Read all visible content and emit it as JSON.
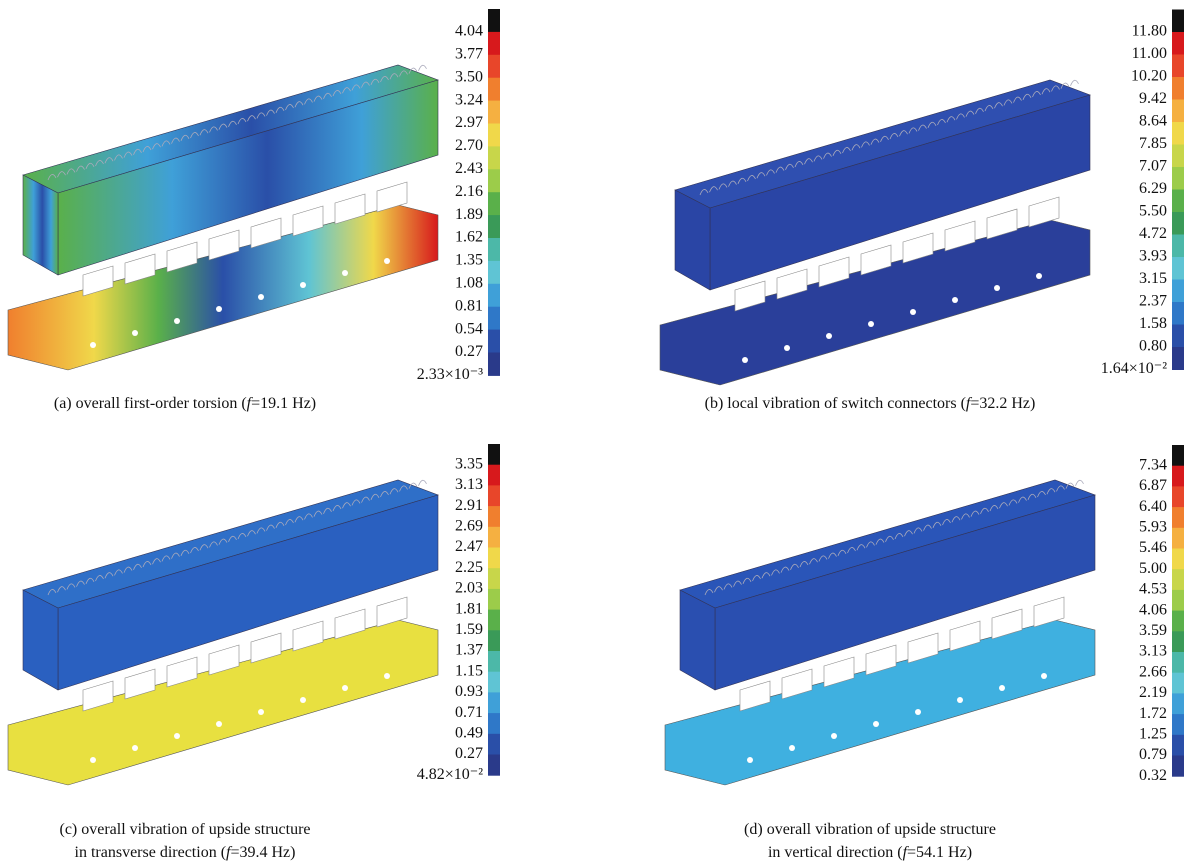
{
  "panels": [
    {
      "scale": [
        "4.04",
        "3.77",
        "3.50",
        "3.24",
        "2.97",
        "2.70",
        "2.43",
        "2.16",
        "1.89",
        "1.62",
        "1.35",
        "1.08",
        "0.81",
        "0.54",
        "0.27",
        "2.33×10⁻³"
      ],
      "caption": {
        "lines": [
          "(a) overall first-order torsion ("
        ],
        "variable": "f",
        "value": "=19.1 Hz)"
      }
    },
    {
      "scale": [
        "11.80",
        "11.00",
        "10.20",
        "9.42",
        "8.64",
        "7.85",
        "7.07",
        "6.29",
        "5.50",
        "4.72",
        "3.93",
        "3.15",
        "2.37",
        "1.58",
        "0.80",
        "1.64×10⁻²"
      ],
      "caption": {
        "lines": [
          "(b) local vibration of switch connectors ("
        ],
        "variable": "f",
        "value": "=32.2 Hz)"
      }
    },
    {
      "scale": [
        "3.35",
        "3.13",
        "2.91",
        "2.69",
        "2.47",
        "2.25",
        "2.03",
        "1.81",
        "1.59",
        "1.37",
        "1.15",
        "0.93",
        "0.71",
        "0.49",
        "0.27",
        "4.82×10⁻²"
      ],
      "caption": {
        "lines": [
          "(c) overall vibration of upside structure",
          "in transverse direction ("
        ],
        "variable": "f",
        "value": "=39.4 Hz)"
      }
    },
    {
      "scale": [
        "7.34",
        "6.87",
        "6.40",
        "5.93",
        "5.46",
        "5.00",
        "4.53",
        "4.06",
        "3.59",
        "3.13",
        "2.66",
        "2.19",
        "1.72",
        "1.25",
        "0.79",
        "0.32"
      ],
      "caption": {
        "lines": [
          "(d) overall vibration of upside structure",
          "in vertical direction ("
        ],
        "variable": "f",
        "value": "=54.1 Hz)"
      }
    }
  ]
}
